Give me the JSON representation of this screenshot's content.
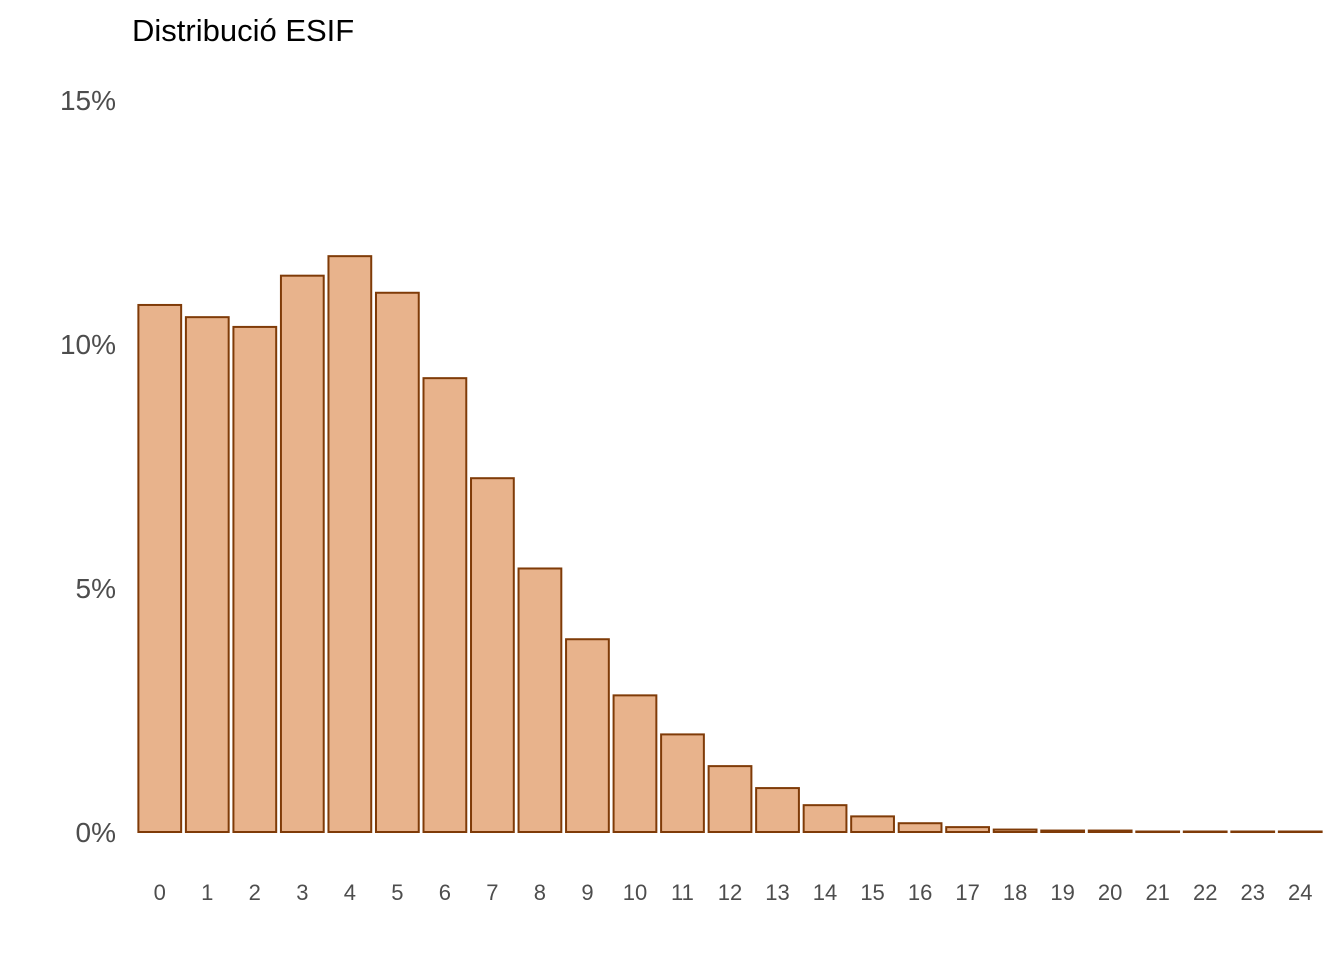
{
  "chart_data": {
    "type": "bar",
    "title": "Distribució ESIF",
    "xlabel": "",
    "ylabel": "",
    "categories": [
      "0",
      "1",
      "2",
      "3",
      "4",
      "5",
      "6",
      "7",
      "8",
      "9",
      "10",
      "11",
      "12",
      "13",
      "14",
      "15",
      "16",
      "17",
      "18",
      "19",
      "20",
      "21",
      "22",
      "23",
      "24"
    ],
    "values": [
      10.8,
      10.55,
      10.35,
      11.4,
      11.8,
      11.05,
      9.3,
      7.25,
      5.4,
      3.95,
      2.8,
      2.0,
      1.35,
      0.9,
      0.55,
      0.32,
      0.18,
      0.1,
      0.05,
      0.03,
      0.03,
      0.01,
      0.01,
      0.01,
      0.01
    ],
    "value_unit": "%",
    "ylim": [
      0,
      15
    ],
    "yticks": [
      0,
      5,
      10,
      15
    ],
    "ytick_labels": [
      "0%",
      "5%",
      "10%",
      "15%"
    ],
    "grid": false,
    "legend": "none",
    "colors": {
      "bar_fill": "#E8B38C",
      "bar_stroke": "#7F3B08"
    }
  }
}
